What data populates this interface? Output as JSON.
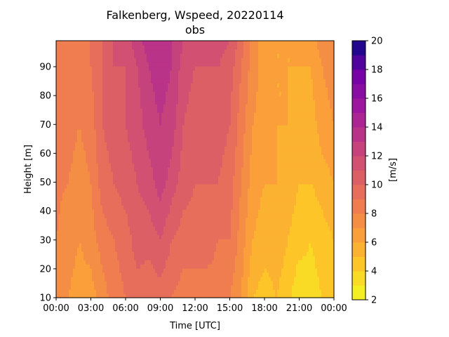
{
  "chart_data": {
    "type": "heatmap",
    "title": "Falkenberg, Wspeed, 20220114",
    "subtitle": "obs",
    "xlabel": "Time [UTC]",
    "ylabel": "Height [m]",
    "xticks": [
      "00:00",
      "03:00",
      "06:00",
      "09:00",
      "12:00",
      "15:00",
      "18:00",
      "21:00",
      "00:00"
    ],
    "xlim_hours": [
      0,
      24
    ],
    "yticks": [
      10,
      20,
      30,
      40,
      50,
      60,
      70,
      80,
      90
    ],
    "ylim": [
      10,
      99
    ],
    "colorbar": {
      "label": "[m/s]",
      "ticks": [
        2,
        4,
        6,
        8,
        10,
        12,
        14,
        16,
        18,
        20
      ],
      "range": [
        2,
        20
      ],
      "levels": 18,
      "colormap": "plasma_r"
    },
    "time_hours": [
      0,
      1,
      2,
      3,
      4,
      5,
      6,
      7,
      8,
      9,
      10,
      11,
      12,
      13,
      14,
      15,
      16,
      17,
      18,
      19,
      20,
      21,
      22,
      23,
      24
    ],
    "heights": [
      10,
      30,
      50,
      70,
      90,
      99
    ],
    "values": [
      [
        7.5,
        8.0,
        8.2,
        8.5,
        8.5,
        8.5
      ],
      [
        7.0,
        7.5,
        8.0,
        8.5,
        8.5,
        8.5
      ],
      [
        6.5,
        7.0,
        7.5,
        8.0,
        8.5,
        8.5
      ],
      [
        6.5,
        7.5,
        8.0,
        8.5,
        9.0,
        9.0
      ],
      [
        7.5,
        8.5,
        9.5,
        10.0,
        10.0,
        10.0
      ],
      [
        8.5,
        9.0,
        10.0,
        10.5,
        11.0,
        11.0
      ],
      [
        9.0,
        9.5,
        10.5,
        11.0,
        11.0,
        11.5
      ],
      [
        9.5,
        10.5,
        11.0,
        11.5,
        12.0,
        12.5
      ],
      [
        9.0,
        10.5,
        11.5,
        12.5,
        13.0,
        13.5
      ],
      [
        9.5,
        11.0,
        12.5,
        13.0,
        13.5,
        14.0
      ],
      [
        9.0,
        10.0,
        11.5,
        12.5,
        13.0,
        13.0
      ],
      [
        8.5,
        9.5,
        10.5,
        11.0,
        11.5,
        12.0
      ],
      [
        8.5,
        9.5,
        10.0,
        10.5,
        11.0,
        11.5
      ],
      [
        8.5,
        9.5,
        10.0,
        10.5,
        11.0,
        11.5
      ],
      [
        8.5,
        9.0,
        10.0,
        10.5,
        11.0,
        11.5
      ],
      [
        8.0,
        9.0,
        9.5,
        10.0,
        10.5,
        11.0
      ],
      [
        7.0,
        7.5,
        8.0,
        8.5,
        9.0,
        9.5
      ],
      [
        5.0,
        6.0,
        6.5,
        7.0,
        7.5,
        7.5
      ],
      [
        4.5,
        5.5,
        6.0,
        6.5,
        6.5,
        6.5
      ],
      [
        5.0,
        5.5,
        6.0,
        6.0,
        6.0,
        6.0
      ],
      [
        4.5,
        5.0,
        5.5,
        6.0,
        6.0,
        6.0
      ],
      [
        3.0,
        4.5,
        5.0,
        5.5,
        6.0,
        6.0
      ],
      [
        3.5,
        4.0,
        5.0,
        5.5,
        6.0,
        6.5
      ],
      [
        4.0,
        4.5,
        5.5,
        6.5,
        7.0,
        7.5
      ],
      [
        4.5,
        5.0,
        6.0,
        7.0,
        7.5,
        8.0
      ]
    ]
  }
}
